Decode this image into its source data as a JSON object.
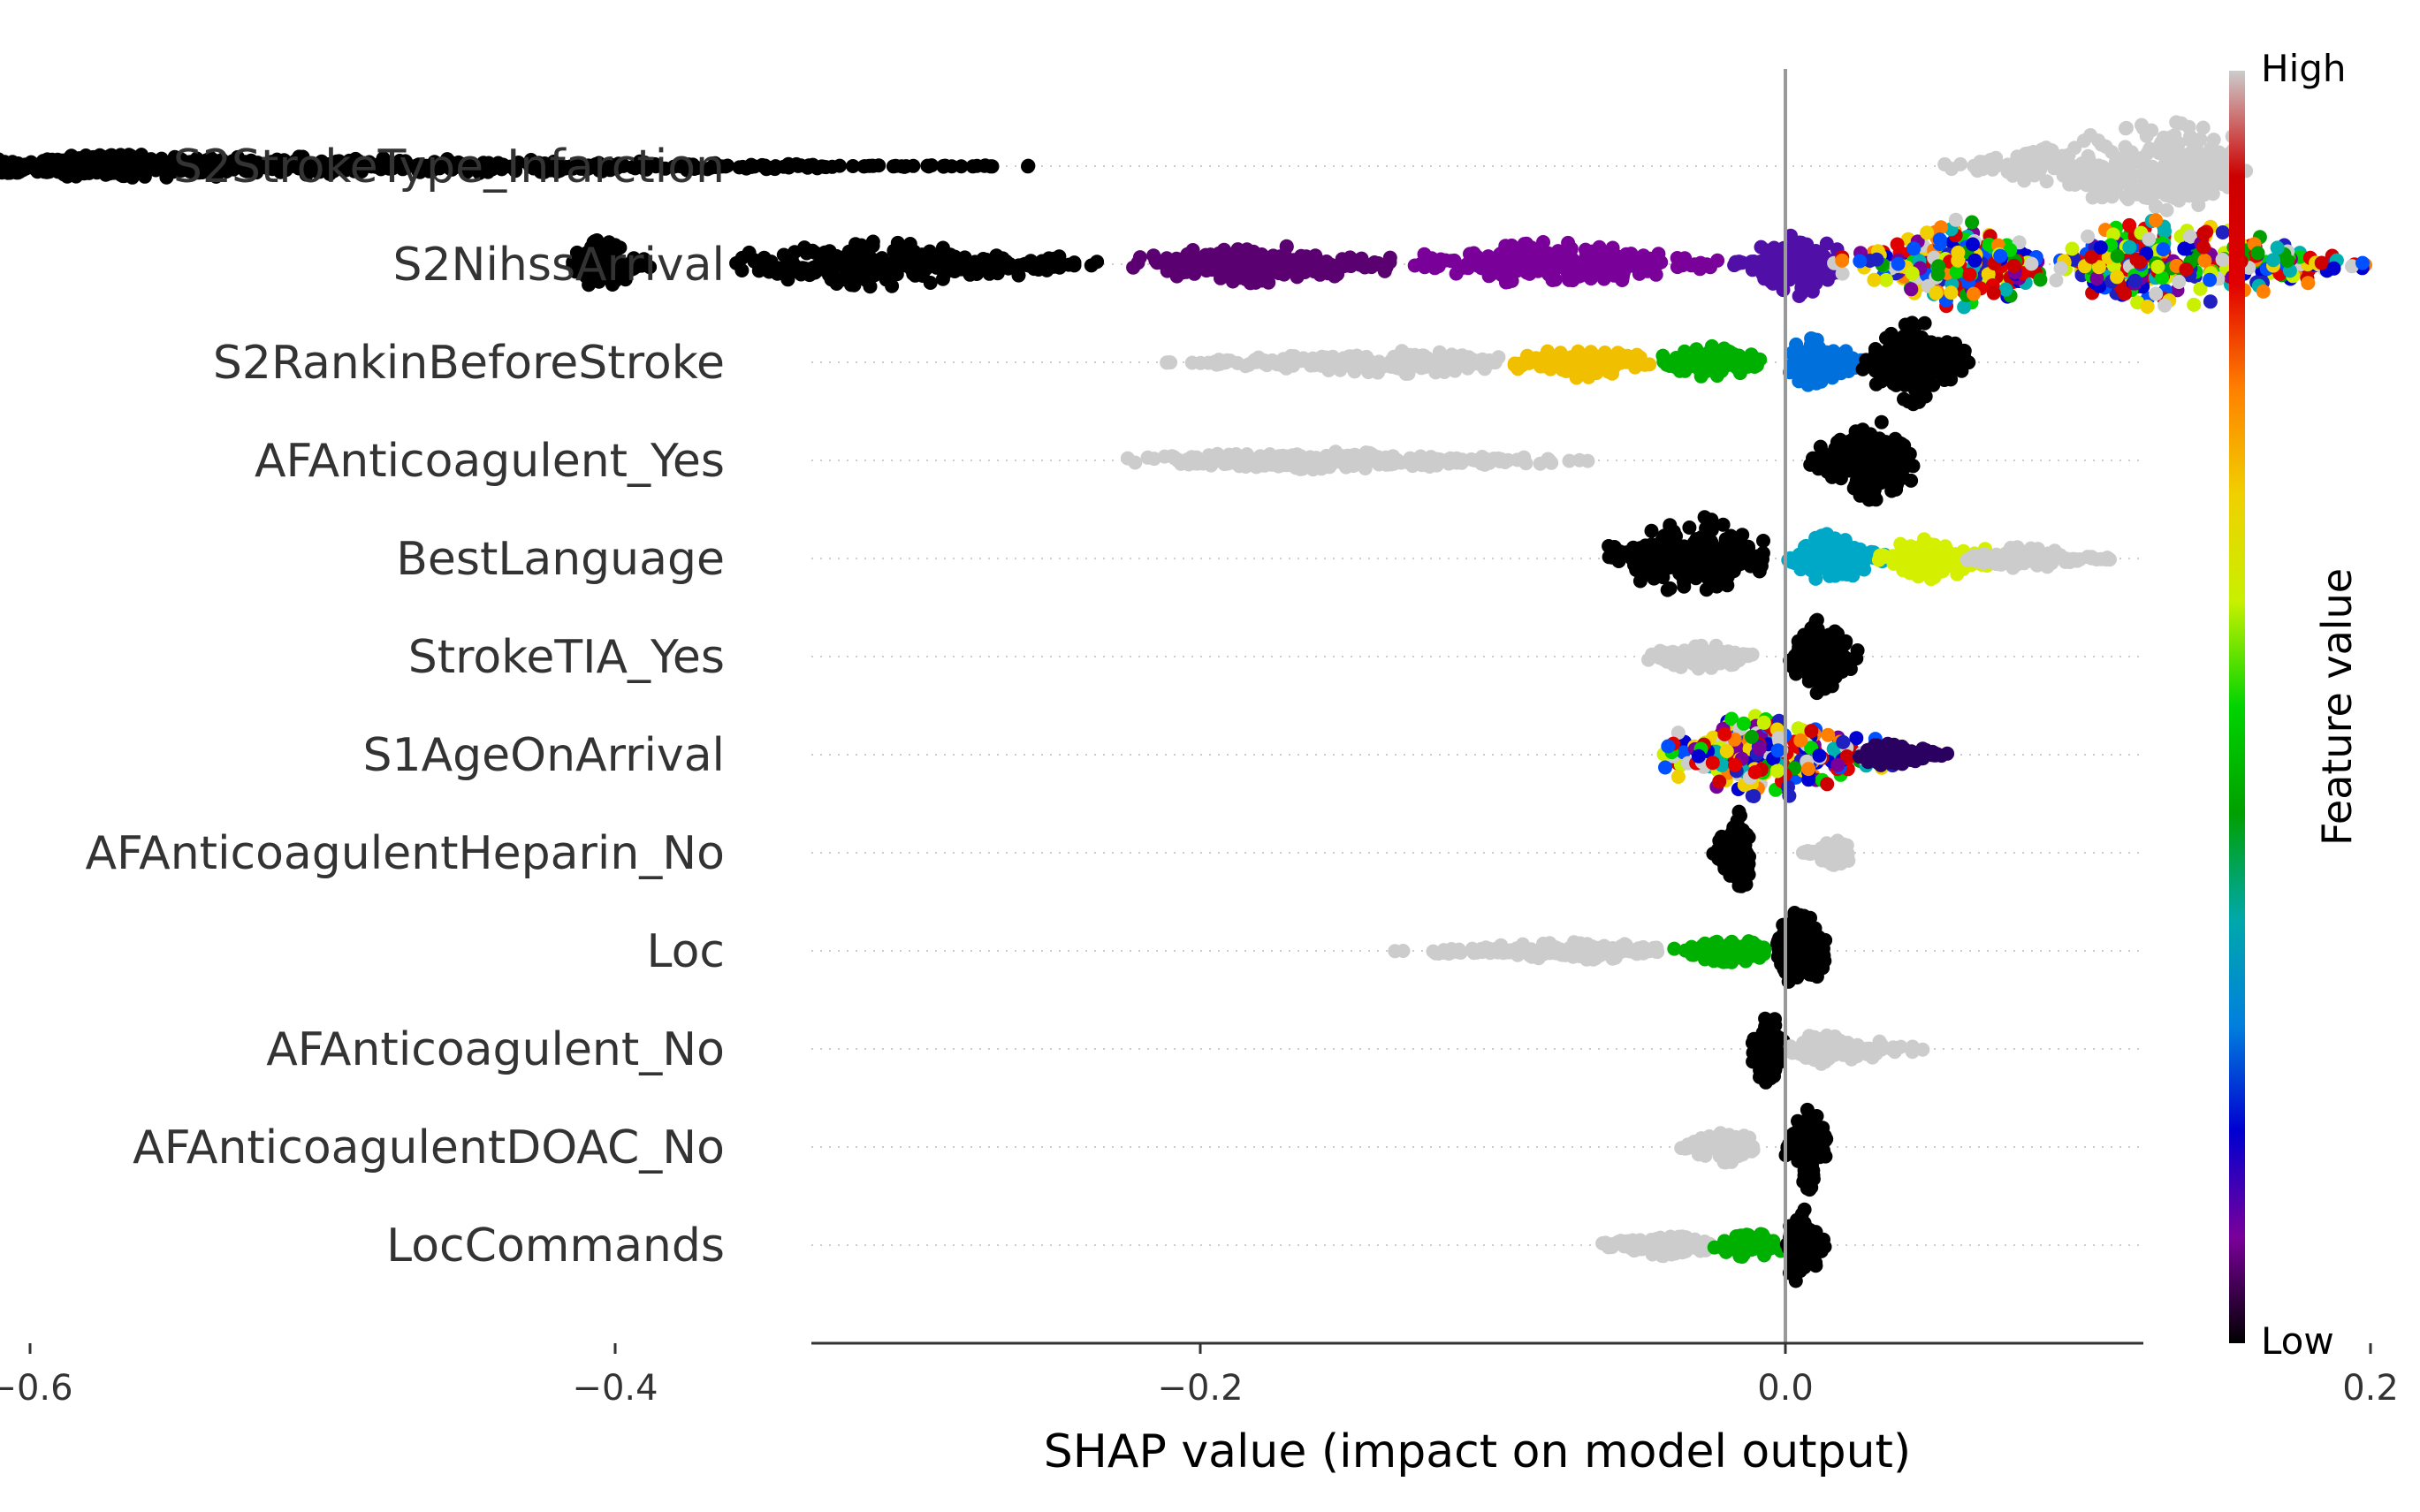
{
  "chart_data": {
    "type": "scatter",
    "subtype": "shap-beeswarm",
    "xlabel": "SHAP value (impact on model output)",
    "ylabel": "",
    "xlim": [
      -0.67,
      0.245
    ],
    "xticks": [
      {
        "value": -0.6,
        "label": "−0.6"
      },
      {
        "value": -0.4,
        "label": "−0.4"
      },
      {
        "value": -0.2,
        "label": "−0.2"
      },
      {
        "value": 0.0,
        "label": "0.0"
      },
      {
        "value": 0.2,
        "label": "0.2"
      }
    ],
    "zero_line": 0.0,
    "grid": "dotted horizontal guide per feature row",
    "colorbar": {
      "title": "Feature value",
      "high_label": "High",
      "low_label": "Low",
      "colormap": "nipy_spectral",
      "stops": [
        "#000000",
        "#7a009a",
        "#0000d0",
        "#0080dd",
        "#00a8aa",
        "#00a000",
        "#00d400",
        "#c8f000",
        "#f0d000",
        "#ff8000",
        "#e00000",
        "#cc0000",
        "#cccccc"
      ]
    },
    "features": [
      {
        "name": "S2StrokeType_Infarction",
        "clusters": [
          {
            "min": -0.63,
            "max": -0.235,
            "peak": -0.56,
            "density": 1.0,
            "color": "#000000",
            "spread": 0.25
          },
          {
            "min": 0.05,
            "max": 0.16,
            "peak": 0.13,
            "density": 1.0,
            "color": "#cccccc",
            "spread": 1.0
          }
        ]
      },
      {
        "name": "S2NihssArrival",
        "clusters": [
          {
            "min": -0.415,
            "max": -0.385,
            "peak": -0.405,
            "density": 0.8,
            "color": "#000000",
            "spread": 0.55
          },
          {
            "min": -0.36,
            "max": -0.23,
            "peak": -0.31,
            "density": 0.9,
            "color": "#000000",
            "spread": 0.5
          },
          {
            "min": -0.23,
            "max": -0.13,
            "peak": -0.18,
            "density": 0.9,
            "color": "#5a0070",
            "spread": 0.45
          },
          {
            "min": -0.13,
            "max": -0.02,
            "peak": -0.08,
            "density": 0.9,
            "color": "#7a009a",
            "spread": 0.5
          },
          {
            "min": -0.02,
            "max": 0.02,
            "peak": 0.005,
            "density": 0.9,
            "color": "#5010a8",
            "spread": 0.7
          },
          {
            "min": 0.015,
            "max": 0.09,
            "peak": 0.06,
            "density": 1.0,
            "color": "mixed",
            "spread": 1.0
          },
          {
            "min": 0.09,
            "max": 0.205,
            "peak": 0.13,
            "density": 1.0,
            "color": "mixed",
            "spread": 1.0
          }
        ]
      },
      {
        "name": "S2RankinBeforeStroke",
        "clusters": [
          {
            "min": -0.215,
            "max": -0.095,
            "peak": -0.13,
            "density": 0.9,
            "color": "#cccccc",
            "spread": 0.25
          },
          {
            "min": -0.095,
            "max": -0.045,
            "peak": -0.07,
            "density": 0.9,
            "color": "#f0c000",
            "spread": 0.35
          },
          {
            "min": -0.045,
            "max": -0.005,
            "peak": -0.025,
            "density": 0.9,
            "color": "#00b000",
            "spread": 0.35
          },
          {
            "min": 0.0,
            "max": 0.03,
            "peak": 0.01,
            "density": 0.9,
            "color": "#0070dd",
            "spread": 0.55
          },
          {
            "min": 0.025,
            "max": 0.065,
            "peak": 0.045,
            "density": 1.0,
            "color": "#000000",
            "spread": 0.95
          }
        ]
      },
      {
        "name": "AFAnticoagulent_Yes",
        "clusters": [
          {
            "min": -0.225,
            "max": -0.06,
            "peak": -0.16,
            "density": 0.9,
            "color": "#cccccc",
            "spread": 0.2
          },
          {
            "min": 0.005,
            "max": 0.045,
            "peak": 0.03,
            "density": 1.0,
            "color": "#000000",
            "spread": 0.95
          }
        ]
      },
      {
        "name": "BestLanguage",
        "clusters": [
          {
            "min": -0.065,
            "max": -0.005,
            "peak": -0.03,
            "density": 1.0,
            "color": "#000000",
            "spread": 0.95
          },
          {
            "min": 0.0,
            "max": 0.035,
            "peak": 0.015,
            "density": 0.9,
            "color": "#00a8c8",
            "spread": 0.55
          },
          {
            "min": 0.03,
            "max": 0.08,
            "peak": 0.05,
            "density": 0.8,
            "color": "#d4f000",
            "spread": 0.45
          },
          {
            "min": 0.06,
            "max": 0.115,
            "peak": 0.08,
            "density": 0.6,
            "color": "#cccccc",
            "spread": 0.25
          }
        ]
      },
      {
        "name": "StrokeTIA_Yes",
        "clusters": [
          {
            "min": -0.05,
            "max": -0.01,
            "peak": -0.03,
            "density": 0.8,
            "color": "#cccccc",
            "spread": 0.3
          },
          {
            "min": 0.0,
            "max": 0.025,
            "peak": 0.012,
            "density": 1.0,
            "color": "#000000",
            "spread": 0.85
          }
        ]
      },
      {
        "name": "S1AgeOnArrival",
        "clusters": [
          {
            "min": -0.045,
            "max": 0.04,
            "peak": -0.005,
            "density": 1.0,
            "color": "mixed",
            "spread": 1.0
          },
          {
            "min": 0.025,
            "max": 0.06,
            "peak": 0.035,
            "density": 0.7,
            "color": "#2a0060",
            "spread": 0.25
          }
        ]
      },
      {
        "name": "AFAnticoagulentHeparin_No",
        "clusters": [
          {
            "min": -0.025,
            "max": -0.012,
            "peak": -0.016,
            "density": 0.9,
            "color": "#000000",
            "spread": 0.95
          },
          {
            "min": 0.005,
            "max": 0.022,
            "peak": 0.018,
            "density": 0.7,
            "color": "#cccccc",
            "spread": 0.3
          }
        ]
      },
      {
        "name": "Loc",
        "clusters": [
          {
            "min": -0.135,
            "max": -0.04,
            "peak": -0.07,
            "density": 0.8,
            "color": "#cccccc",
            "spread": 0.2
          },
          {
            "min": -0.04,
            "max": -0.005,
            "peak": -0.02,
            "density": 0.9,
            "color": "#00b000",
            "spread": 0.3
          },
          {
            "min": -0.005,
            "max": 0.015,
            "peak": 0.005,
            "density": 1.0,
            "color": "#000000",
            "spread": 0.95
          }
        ]
      },
      {
        "name": "AFAnticoagulent_No",
        "clusters": [
          {
            "min": -0.012,
            "max": 0.0,
            "peak": -0.006,
            "density": 1.0,
            "color": "#000000",
            "spread": 0.9
          },
          {
            "min": 0.0,
            "max": 0.05,
            "peak": 0.015,
            "density": 0.8,
            "color": "#cccccc",
            "spread": 0.35
          }
        ]
      },
      {
        "name": "AFAnticoagulentDOAC_No",
        "clusters": [
          {
            "min": -0.04,
            "max": -0.01,
            "peak": -0.02,
            "density": 0.8,
            "color": "#cccccc",
            "spread": 0.35
          },
          {
            "min": 0.0,
            "max": 0.015,
            "peak": 0.008,
            "density": 1.0,
            "color": "#000000",
            "spread": 0.95
          }
        ]
      },
      {
        "name": "LocCommands",
        "clusters": [
          {
            "min": -0.065,
            "max": -0.025,
            "peak": -0.04,
            "density": 0.8,
            "color": "#cccccc",
            "spread": 0.25
          },
          {
            "min": -0.025,
            "max": 0.0,
            "peak": -0.012,
            "density": 0.9,
            "color": "#00b000",
            "spread": 0.3
          },
          {
            "min": 0.0,
            "max": 0.015,
            "peak": 0.005,
            "density": 1.0,
            "color": "#000000",
            "spread": 0.9
          }
        ]
      }
    ]
  }
}
